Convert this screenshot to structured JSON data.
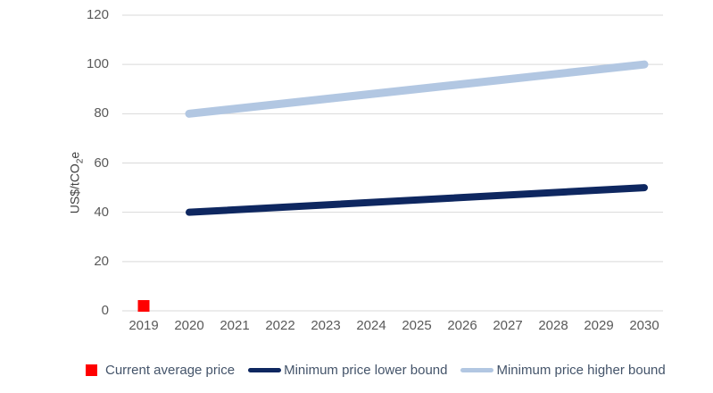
{
  "chart_data": {
    "type": "line",
    "title": "",
    "xlabel": "",
    "ylabel": "US$/tCO2e",
    "ylabel_parts": {
      "pre": "US$/tCO",
      "sub": "2",
      "post": "e"
    },
    "categories": [
      "2019",
      "2020",
      "2021",
      "2022",
      "2023",
      "2024",
      "2025",
      "2026",
      "2027",
      "2028",
      "2029",
      "2030"
    ],
    "y_ticks": [
      0,
      20,
      40,
      60,
      80,
      100,
      120
    ],
    "ylim": [
      0,
      120
    ],
    "grid": true,
    "legend_position": "bottom",
    "colors": {
      "gridline": "#d9d9d9",
      "axis_text": "#595959",
      "axis_title_text": "#404040",
      "legend_text": "#44546a",
      "background": "#ffffff"
    },
    "series": [
      {
        "name": "Current average price",
        "type": "scatter",
        "marker": "square",
        "color": "#ff0000",
        "points": [
          {
            "x": "2019",
            "y": 2
          }
        ]
      },
      {
        "name": "Minimum price lower bound",
        "type": "line",
        "color": "#0e2760",
        "line_width": 8,
        "points": [
          {
            "x": "2020",
            "y": 40
          },
          {
            "x": "2030",
            "y": 50
          }
        ]
      },
      {
        "name": "Minimum price higher bound",
        "type": "line",
        "color": "#b2c7e2",
        "line_width": 9,
        "points": [
          {
            "x": "2020",
            "y": 80
          },
          {
            "x": "2030",
            "y": 100
          }
        ]
      }
    ]
  }
}
